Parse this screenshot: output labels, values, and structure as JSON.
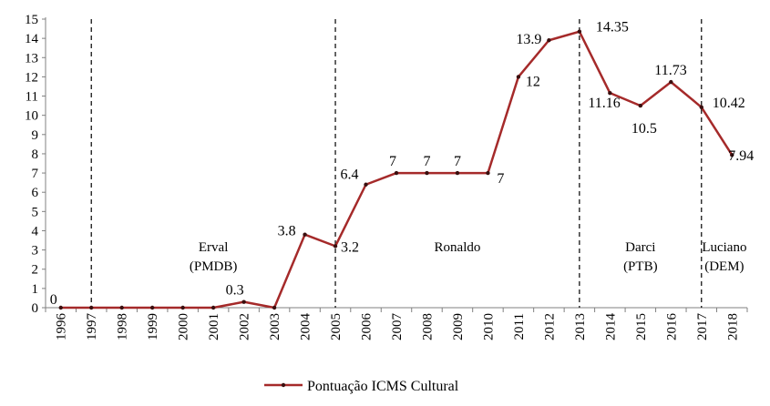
{
  "chart_data": {
    "type": "line",
    "title": "",
    "xlabel": "",
    "ylabel": "",
    "ylim": [
      0,
      15
    ],
    "ytick_step": 1,
    "grid": false,
    "legend_position": "bottom",
    "categories": [
      "1996",
      "1997",
      "1998",
      "1999",
      "2000",
      "2001",
      "2002",
      "2003",
      "2004",
      "2005",
      "2006",
      "2007",
      "2008",
      "2009",
      "2010",
      "2011",
      "2012",
      "2013",
      "2014",
      "2015",
      "2016",
      "2017",
      "2018"
    ],
    "series": [
      {
        "name": "Pontuação ICMS Cultural",
        "color": "#a52a2a",
        "values": [
          0,
          0,
          0,
          0,
          0,
          0,
          0.3,
          0,
          3.8,
          3.2,
          6.4,
          7,
          7,
          7,
          7,
          12,
          13.9,
          14.35,
          11.16,
          10.5,
          11.73,
          10.42,
          7.94
        ]
      }
    ],
    "data_labels": [
      {
        "index": 0,
        "text": "0"
      },
      {
        "index": 6,
        "text": "0.3"
      },
      {
        "index": 8,
        "text": "3.8"
      },
      {
        "index": 9,
        "text": "3.2"
      },
      {
        "index": 10,
        "text": "6.4"
      },
      {
        "index": 11,
        "text": "7"
      },
      {
        "index": 12,
        "text": "7"
      },
      {
        "index": 13,
        "text": "7"
      },
      {
        "index": 14,
        "text": "7"
      },
      {
        "index": 15,
        "text": "12"
      },
      {
        "index": 16,
        "text": "13.9"
      },
      {
        "index": 17,
        "text": "14.35"
      },
      {
        "index": 18,
        "text": "11.16"
      },
      {
        "index": 19,
        "text": "10.5"
      },
      {
        "index": 20,
        "text": "11.73"
      },
      {
        "index": 21,
        "text": "10.42"
      },
      {
        "index": 22,
        "text": "7.94"
      }
    ],
    "period_dividers": [
      "1997",
      "2005",
      "2013",
      "2017"
    ],
    "period_labels": [
      {
        "lines": [
          "Erval",
          "(PMDB)"
        ]
      },
      {
        "lines": [
          "Ronaldo"
        ]
      },
      {
        "lines": [
          "Darci",
          "(PTB)"
        ]
      },
      {
        "lines": [
          "Luciano",
          "(DEM)"
        ]
      }
    ]
  }
}
